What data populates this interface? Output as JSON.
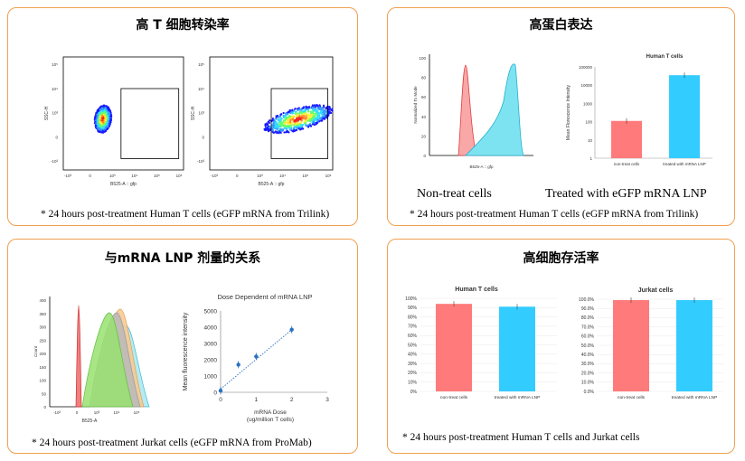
{
  "panels": {
    "tl": {
      "title": "高 T 细胞转染率",
      "footnote": "* 24 hours post-treatment Human T cells (eGFP mRNA from Trilink)"
    },
    "tr": {
      "title": "高蛋白表达",
      "label_left": "Non-treat cells",
      "label_right": "Treated with eGFP mRNA LNP",
      "footnote": "* 24 hours post-treatment Human T cells (eGFP mRNA from Trilink)"
    },
    "bl": {
      "title": "与mRNA LNP 剂量的关系",
      "footnote": "* 24 hours post-treatment Jurkat cells (eGFP mRNA from ProMab)"
    },
    "br": {
      "title": "高细胞存活率",
      "footnote": "* 24 hours post-treatment Human T cells and Jurkat cells"
    }
  },
  "flow_plots": {
    "ylabel": "SSC-H",
    "xlabel": "B525-A :: gfp",
    "ticks": [
      "10⁵",
      "10⁴",
      "10³",
      "0",
      "-10³"
    ],
    "xticks": [
      "-10³",
      "0",
      "10³",
      "10⁴",
      "10⁵",
      "10⁶"
    ]
  },
  "histogram_tr": {
    "ylabel": "Normalized To Mode",
    "xlabel": "B525-A :: gfp",
    "yticks": [
      "100",
      "80",
      "60",
      "40",
      "20",
      "0"
    ]
  },
  "histogram_bl": {
    "ylabel": "Count",
    "xlabel": "B525-A",
    "yticks": [
      "400",
      "350",
      "300",
      "250",
      "200",
      "150",
      "100",
      "50",
      "0"
    ],
    "xticks": [
      "-10³",
      "0",
      "10³",
      "10⁴",
      "10⁵"
    ]
  },
  "chart_data": [
    {
      "type": "bar",
      "title": "Human T cells",
      "categories": [
        "non-treat cells",
        "treated with mRNA LNP"
      ],
      "values": [
        110,
        35000
      ],
      "ylabel": "Mean Florescence Intensity",
      "yscale": "log",
      "yticks": [
        "100000",
        "10000",
        "1000",
        "100",
        "10",
        "1"
      ],
      "colors": [
        "#ff7a7a",
        "#33ccff"
      ]
    },
    {
      "type": "scatter",
      "title": "Dose Dependent of mRNA LNP",
      "x": [
        0,
        0.5,
        1,
        2
      ],
      "y": [
        100,
        1700,
        2200,
        3850
      ],
      "xlabel": "mRNA Dose (ug/million T cells)",
      "ylabel": "Mean fluorescence intensity",
      "xlim": [
        0,
        3
      ],
      "ylim": [
        0,
        5000
      ],
      "xticks": [
        "0",
        "1",
        "2",
        "3"
      ],
      "yticks": [
        "5000",
        "4000",
        "3000",
        "2000",
        "1000",
        "0"
      ],
      "trendline": "linear dotted"
    },
    {
      "type": "bar",
      "title": "Human T cells",
      "categories": [
        "non-treat cells",
        "treated with mRNA LNP"
      ],
      "values": [
        94,
        91
      ],
      "yticks": [
        "100%",
        "90%",
        "80%",
        "70%",
        "60%",
        "50%",
        "40%",
        "30%",
        "20%",
        "10%",
        "0%"
      ],
      "colors": [
        "#ff7a7a",
        "#33ccff"
      ]
    },
    {
      "type": "bar",
      "title": "Jurkat cells",
      "categories": [
        "non-treat cells",
        "treated with mRNA LNP"
      ],
      "values": [
        99,
        99
      ],
      "yticks": [
        "100.0%",
        "90.0%",
        "80.0%",
        "70.0%",
        "60.0%",
        "50.0%",
        "40.0%",
        "30.0%",
        "20.0%",
        "10.0%",
        "0.0%"
      ],
      "colors": [
        "#ff7a7a",
        "#33ccff"
      ]
    }
  ]
}
